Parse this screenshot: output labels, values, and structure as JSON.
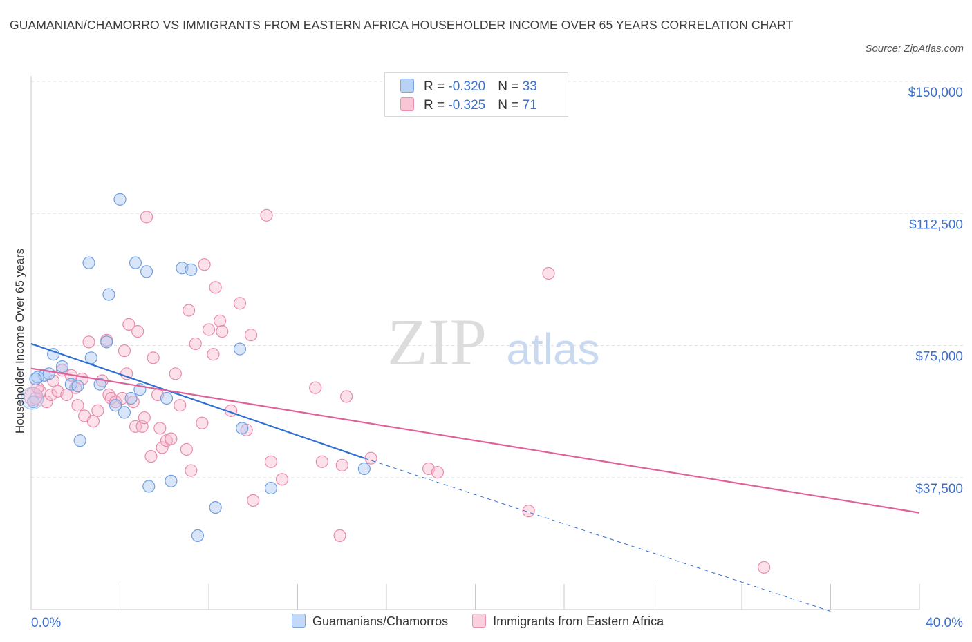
{
  "title": "GUAMANIAN/CHAMORRO VS IMMIGRANTS FROM EASTERN AFRICA HOUSEHOLDER INCOME OVER 65 YEARS CORRELATION CHART",
  "source": "Source: ZipAtlas.com",
  "watermark": {
    "zip": "ZIP",
    "atlas": "atlas"
  },
  "stats": [
    {
      "r_label": "R = ",
      "r": "-0.320",
      "n_label": "N = ",
      "n": "33",
      "color": "#a8c8f4",
      "border": "#7aa6e6"
    },
    {
      "r_label": "R = ",
      "r": "-0.325",
      "n_label": "N = ",
      "n": "71",
      "color": "#f8bcd0",
      "border": "#ec8fb0"
    }
  ],
  "chart_data": {
    "type": "scatter",
    "ylabel": "Householder Income Over 65 years",
    "xlim": [
      0,
      40
    ],
    "ylim": [
      0,
      150000
    ],
    "x_tick_labels": [
      "0.0%",
      "40.0%"
    ],
    "y_ticks": [
      37500,
      75000,
      112500,
      150000
    ],
    "y_tick_labels": [
      "$37,500",
      "$75,000",
      "$112,500",
      "$150,000"
    ],
    "grid": true,
    "legend": "bottom",
    "series": [
      {
        "name": "Guamanians/Chamorros",
        "fill": "rgba(170,200,245,0.45)",
        "stroke": "#6f9fe0",
        "line_color": "#2f6fd1",
        "trend": {
          "x1": 0,
          "y1": 75500,
          "x2": 15,
          "y2": 43000,
          "dash_x2": 36,
          "dash_y2": -500
        },
        "points": [
          [
            0.1,
            59000
          ],
          [
            0.3,
            66000
          ],
          [
            0.6,
            66500
          ],
          [
            0.8,
            67000
          ],
          [
            1.0,
            72500
          ],
          [
            1.4,
            69000
          ],
          [
            1.8,
            64000
          ],
          [
            2.1,
            63500
          ],
          [
            2.2,
            48000
          ],
          [
            2.6,
            98500
          ],
          [
            2.7,
            71500
          ],
          [
            3.1,
            64000
          ],
          [
            3.4,
            76000
          ],
          [
            3.5,
            89500
          ],
          [
            3.8,
            58000
          ],
          [
            4.0,
            116500
          ],
          [
            4.2,
            56000
          ],
          [
            4.5,
            60000
          ],
          [
            4.7,
            98500
          ],
          [
            4.9,
            62500
          ],
          [
            5.2,
            96000
          ],
          [
            5.3,
            35000
          ],
          [
            6.1,
            60000
          ],
          [
            6.3,
            36500
          ],
          [
            6.8,
            97000
          ],
          [
            7.2,
            96500
          ],
          [
            7.5,
            21000
          ],
          [
            8.3,
            29000
          ],
          [
            9.4,
            74000
          ],
          [
            9.5,
            51500
          ],
          [
            10.8,
            34500
          ],
          [
            15.0,
            40000
          ],
          [
            0.2,
            65500
          ]
        ]
      },
      {
        "name": "Immigrants from Eastern Africa",
        "fill": "rgba(248,188,208,0.45)",
        "stroke": "#e98aab",
        "line_color": "#e0609a",
        "trend": {
          "x1": 0,
          "y1": 68500,
          "x2": 40,
          "y2": 27500
        },
        "points": [
          [
            0.2,
            60000
          ],
          [
            0.4,
            62000
          ],
          [
            0.7,
            59000
          ],
          [
            0.9,
            61000
          ],
          [
            1.0,
            65000
          ],
          [
            1.2,
            62000
          ],
          [
            1.4,
            68000
          ],
          [
            1.6,
            61000
          ],
          [
            1.8,
            66500
          ],
          [
            2.0,
            63000
          ],
          [
            2.1,
            58000
          ],
          [
            2.3,
            65500
          ],
          [
            2.4,
            55000
          ],
          [
            2.6,
            76000
          ],
          [
            2.8,
            53500
          ],
          [
            3.0,
            56500
          ],
          [
            3.2,
            65000
          ],
          [
            3.4,
            76500
          ],
          [
            3.5,
            61000
          ],
          [
            3.6,
            60000
          ],
          [
            3.8,
            59000
          ],
          [
            4.1,
            60000
          ],
          [
            4.2,
            73500
          ],
          [
            4.3,
            67000
          ],
          [
            4.4,
            81000
          ],
          [
            4.6,
            59000
          ],
          [
            4.7,
            52000
          ],
          [
            4.8,
            79000
          ],
          [
            5.0,
            52000
          ],
          [
            5.1,
            54500
          ],
          [
            5.2,
            111500
          ],
          [
            5.4,
            43500
          ],
          [
            5.5,
            71500
          ],
          [
            5.7,
            61000
          ],
          [
            5.8,
            51500
          ],
          [
            5.9,
            46000
          ],
          [
            6.1,
            48000
          ],
          [
            6.3,
            48500
          ],
          [
            6.5,
            67000
          ],
          [
            6.7,
            58000
          ],
          [
            7.0,
            45500
          ],
          [
            7.1,
            85000
          ],
          [
            7.2,
            39500
          ],
          [
            7.4,
            75500
          ],
          [
            7.7,
            53000
          ],
          [
            7.8,
            98000
          ],
          [
            8.0,
            79500
          ],
          [
            8.2,
            72500
          ],
          [
            8.3,
            91500
          ],
          [
            8.5,
            82000
          ],
          [
            8.6,
            79000
          ],
          [
            9.0,
            56500
          ],
          [
            9.4,
            87000
          ],
          [
            9.7,
            51000
          ],
          [
            9.9,
            78000
          ],
          [
            10.0,
            31000
          ],
          [
            10.6,
            112000
          ],
          [
            10.8,
            42000
          ],
          [
            11.3,
            37000
          ],
          [
            12.8,
            63000
          ],
          [
            13.1,
            42000
          ],
          [
            13.9,
            21000
          ],
          [
            14.0,
            41000
          ],
          [
            14.2,
            60500
          ],
          [
            15.3,
            43000
          ],
          [
            17.9,
            40000
          ],
          [
            18.3,
            39000
          ],
          [
            22.4,
            28000
          ],
          [
            23.3,
            95500
          ],
          [
            33.0,
            12000
          ],
          [
            0.3,
            63000
          ]
        ]
      }
    ]
  }
}
